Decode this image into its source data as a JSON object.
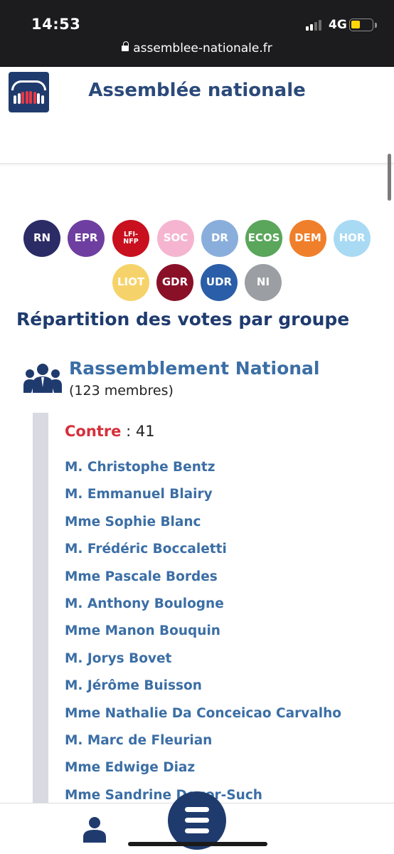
{
  "status_bar": {
    "time": "14:53",
    "network": "4G",
    "url": "assemblee-nationale.fr"
  },
  "header": {
    "title": "Assemblée nationale"
  },
  "groups": [
    {
      "label": "RN",
      "color": "#2b2b66"
    },
    {
      "label": "EPR",
      "color": "#6e3fa0"
    },
    {
      "label": "LFI-NFP",
      "color": "#c8101e"
    },
    {
      "label": "SOC",
      "color": "#f5b5d0"
    },
    {
      "label": "DR",
      "color": "#8aaedc"
    },
    {
      "label": "ECOS",
      "color": "#5aa65b"
    },
    {
      "label": "DEM",
      "color": "#f07f2b"
    },
    {
      "label": "HOR",
      "color": "#a9daf4"
    },
    {
      "label": "LIOT",
      "color": "#f6d36a"
    },
    {
      "label": "GDR",
      "color": "#8a1028"
    },
    {
      "label": "UDR",
      "color": "#2a5ea8"
    },
    {
      "label": "NI",
      "color": "#9b9ea3"
    }
  ],
  "section_title": "Répartition des votes par groupe",
  "group": {
    "name": "Rassemblement National",
    "members_count": "(123 membres)",
    "vote_label": "Contre",
    "vote_value": " : 41"
  },
  "members": [
    "M. Christophe Bentz",
    "M. Emmanuel Blairy",
    "Mme Sophie Blanc",
    "M. Frédéric Boccaletti",
    "Mme Pascale Bordes",
    "M. Anthony Boulogne",
    "Mme Manon Bouquin",
    "M. Jorys Bovet",
    "M. Jérôme Buisson",
    "Mme Nathalie Da Conceicao Carvalho",
    "M. Marc de Fleurian",
    "Mme Edwige Diaz",
    "Mme Sandrine Dogor-Such"
  ],
  "colors": {
    "header_title": "#2b4a7a",
    "link": "#3b6ea5",
    "contre": "#d6303b",
    "brand": "#1f3b6e"
  }
}
